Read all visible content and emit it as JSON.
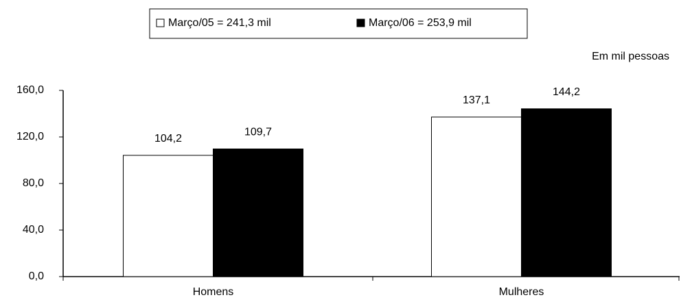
{
  "chart_data": {
    "type": "bar",
    "unit_label": "Em mil pessoas",
    "categories": [
      "Homens",
      "Mulheres"
    ],
    "series": [
      {
        "name": "Março/05 = 241,3 mil",
        "color": "#ffffff",
        "values": [
          104.2,
          137.1
        ],
        "value_labels": [
          "104,2",
          "137,1"
        ]
      },
      {
        "name": "Março/06 = 253,9 mil",
        "color": "#000000",
        "values": [
          109.7,
          144.2
        ],
        "value_labels": [
          "109,7",
          "144,2"
        ]
      }
    ],
    "ylim": [
      0,
      160
    ],
    "yticks": [
      {
        "value": 0,
        "label": "0,0"
      },
      {
        "value": 40,
        "label": "40,0"
      },
      {
        "value": 80,
        "label": "80,0"
      },
      {
        "value": 120,
        "label": "120,0"
      },
      {
        "value": 160,
        "label": "160,0"
      }
    ],
    "legend": "top"
  }
}
